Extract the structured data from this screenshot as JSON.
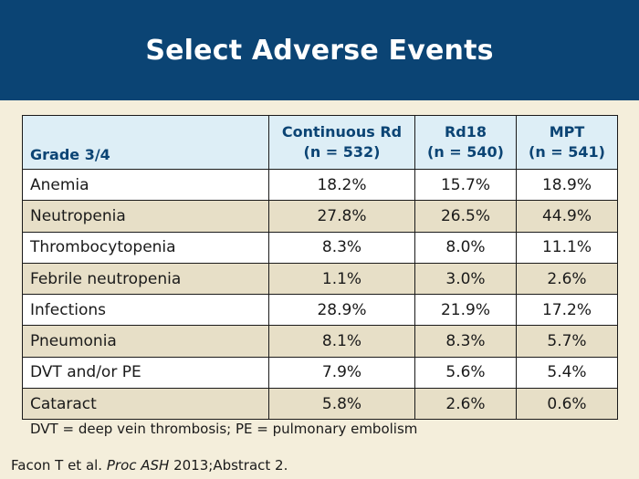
{
  "slide": {
    "title": "Select Adverse Events"
  },
  "table": {
    "headers": [
      {
        "line1": "",
        "line2": "Grade 3/4"
      },
      {
        "line1": "Continuous Rd",
        "line2": "(n = 532)"
      },
      {
        "line1": "Rd18",
        "line2": "(n = 540)"
      },
      {
        "line1": "MPT",
        "line2": "(n = 541)"
      }
    ],
    "rows": [
      {
        "event": "Anemia",
        "values": [
          "18.2%",
          "15.7%",
          "18.9%"
        ]
      },
      {
        "event": "Neutropenia",
        "values": [
          "27.8%",
          "26.5%",
          "44.9%"
        ]
      },
      {
        "event": "Thrombocytopenia",
        "values": [
          "8.3%",
          "8.0%",
          "11.1%"
        ]
      },
      {
        "event": "Febrile neutropenia",
        "values": [
          "1.1%",
          "3.0%",
          "2.6%"
        ]
      },
      {
        "event": "Infections",
        "values": [
          "28.9%",
          "21.9%",
          "17.2%"
        ]
      },
      {
        "event": "Pneumonia",
        "values": [
          "8.1%",
          "8.3%",
          "5.7%"
        ]
      },
      {
        "event": "DVT and/or PE",
        "values": [
          "7.9%",
          "5.6%",
          "5.4%"
        ]
      },
      {
        "event": "Cataract",
        "values": [
          "5.8%",
          "2.6%",
          "0.6%"
        ]
      }
    ]
  },
  "footnote": "DVT = deep vein thrombosis; PE = pulmonary embolism",
  "citation": {
    "authors": "Facon T et al. ",
    "journal": "Proc ASH",
    "details": " 2013;Abstract 2."
  },
  "colors": {
    "title_bar": "#0b4474",
    "header_bg": "#ddeef6",
    "header_text": "#0b4474",
    "row_light": "#ffffff",
    "row_dark": "#e7dfc7",
    "page_bg": "#f4eedb"
  }
}
